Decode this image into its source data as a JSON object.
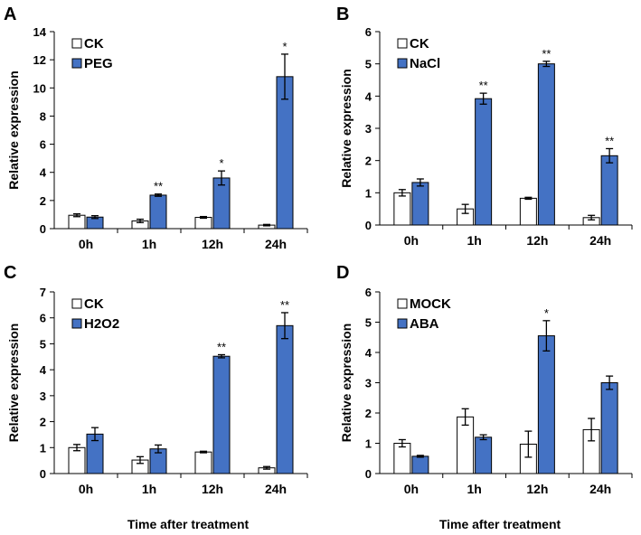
{
  "x_axis_title": "Time after treatment",
  "chart_data": [
    {
      "panel": "A",
      "type": "bar",
      "ylabel": "Relative expression",
      "ylim": [
        0,
        14
      ],
      "ytick_step": 2,
      "categories": [
        "0h",
        "1h",
        "12h",
        "24h"
      ],
      "series": [
        {
          "name": "CK",
          "color": "#ffffff",
          "values": [
            0.95,
            0.55,
            0.8,
            0.25
          ],
          "errors": [
            0.1,
            0.12,
            0.06,
            0.05
          ]
        },
        {
          "name": "PEG",
          "color": "#4472c4",
          "values": [
            0.82,
            2.38,
            3.6,
            10.8
          ],
          "errors": [
            0.1,
            0.08,
            0.5,
            1.6
          ]
        }
      ],
      "annotations": [
        "",
        "**",
        "*",
        "*"
      ]
    },
    {
      "panel": "B",
      "type": "bar",
      "ylabel": "Relative expression",
      "ylim": [
        0,
        6
      ],
      "ytick_step": 1,
      "categories": [
        "0h",
        "1h",
        "12h",
        "24h"
      ],
      "series": [
        {
          "name": "CK",
          "color": "#ffffff",
          "values": [
            1.0,
            0.5,
            0.83,
            0.23
          ],
          "errors": [
            0.1,
            0.14,
            0.03,
            0.07
          ]
        },
        {
          "name": "NaCl",
          "color": "#4472c4",
          "values": [
            1.32,
            3.92,
            5.0,
            2.15
          ],
          "errors": [
            0.11,
            0.17,
            0.08,
            0.22
          ]
        }
      ],
      "annotations": [
        "",
        "**",
        "**",
        "**"
      ]
    },
    {
      "panel": "C",
      "type": "bar",
      "ylabel": "Relative expression",
      "ylim": [
        0,
        7
      ],
      "ytick_step": 1,
      "categories": [
        "0h",
        "1h",
        "12h",
        "24h"
      ],
      "series": [
        {
          "name": "CK",
          "color": "#ffffff",
          "values": [
            1.0,
            0.52,
            0.83,
            0.22
          ],
          "errors": [
            0.12,
            0.13,
            0.03,
            0.05
          ]
        },
        {
          "name": "H2O2",
          "color": "#4472c4",
          "values": [
            1.52,
            0.95,
            4.52,
            5.7
          ],
          "errors": [
            0.25,
            0.15,
            0.06,
            0.5
          ]
        }
      ],
      "annotations": [
        "",
        "",
        "**",
        "**"
      ]
    },
    {
      "panel": "D",
      "type": "bar",
      "ylabel": "Relative expression",
      "ylim": [
        0,
        6
      ],
      "ytick_step": 1,
      "categories": [
        "0h",
        "1h",
        "12h",
        "24h"
      ],
      "series": [
        {
          "name": "MOCK",
          "color": "#ffffff",
          "values": [
            1.0,
            1.87,
            0.97,
            1.45
          ],
          "errors": [
            0.12,
            0.27,
            0.43,
            0.37
          ]
        },
        {
          "name": "ABA",
          "color": "#4472c4",
          "values": [
            0.57,
            1.2,
            4.55,
            3.0
          ],
          "errors": [
            0.03,
            0.08,
            0.5,
            0.22
          ]
        }
      ],
      "annotations": [
        "",
        "",
        "*",
        ""
      ]
    }
  ]
}
